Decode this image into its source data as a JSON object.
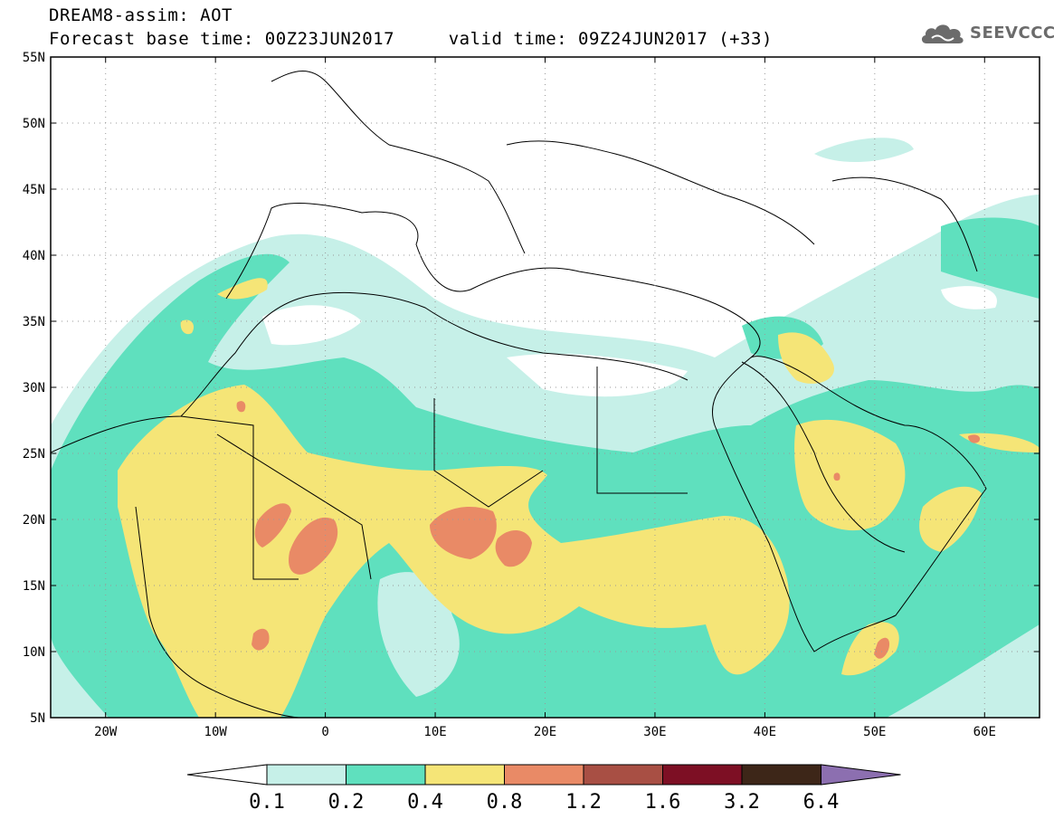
{
  "header": {
    "title": "DREAM8-assim: AOT",
    "subtitle": "Forecast base time: 00Z23JUN2017     valid time: 09Z24JUN2017 (+33)",
    "logo_text": "SEEVCCC",
    "logo_icon": "cloud-icon"
  },
  "map": {
    "lon_range": [
      -25,
      65
    ],
    "lat_range": [
      5,
      55
    ],
    "lat_labels": [
      "55N",
      "50N",
      "45N",
      "40N",
      "35N",
      "30N",
      "25N",
      "20N",
      "15N",
      "10N",
      "5N"
    ],
    "lat_values": [
      55,
      50,
      45,
      40,
      35,
      30,
      25,
      20,
      15,
      10,
      5
    ],
    "lon_labels": [
      "20W",
      "10W",
      "0",
      "10E",
      "20E",
      "30E",
      "40E",
      "50E",
      "60E"
    ],
    "lon_values": [
      -20,
      -10,
      0,
      10,
      20,
      30,
      40,
      50,
      60
    ],
    "gridlines": "dotted"
  },
  "colorbar": {
    "levels": [
      "0.1",
      "0.2",
      "0.4",
      "0.8",
      "1.2",
      "1.6",
      "3.2",
      "6.4"
    ],
    "colors": [
      "#c6f0e8",
      "#5fe0be",
      "#f5e577",
      "#e98a66",
      "#a84f44",
      "#7d0f24",
      "#3d2618"
    ],
    "under_color": "#ffffff",
    "over_color": "#8c6fb0"
  }
}
